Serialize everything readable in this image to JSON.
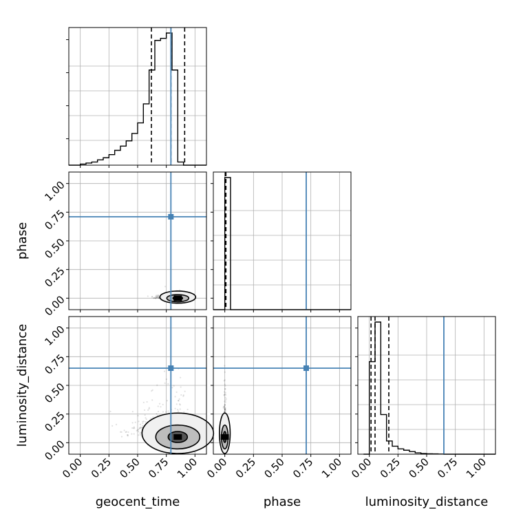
{
  "chart_data": {
    "type": "corner",
    "parameters": [
      "geocent_time",
      "phase",
      "luminosity_distance"
    ],
    "axis_range": [
      -0.1,
      1.1
    ],
    "ticks": [
      0.0,
      0.25,
      0.5,
      0.75,
      1.0
    ],
    "tick_labels": [
      "0.00",
      "0.25",
      "0.50",
      "0.75",
      "1.00"
    ],
    "grid": true,
    "colors": {
      "truth": "#4682b4",
      "hist": "#000000",
      "quantile": "#000000",
      "grid": "#b0b0b0"
    },
    "truths": {
      "geocent_time": 0.79,
      "phase": 0.71,
      "luminosity_distance": 0.65
    },
    "histograms": {
      "geocent_time": {
        "edges_start": -0.1,
        "bin_width": 0.05,
        "counts": [
          0,
          0,
          1,
          2,
          3,
          5,
          7,
          10,
          14,
          18,
          23,
          30,
          40,
          58,
          90,
          118,
          120,
          125,
          90,
          3,
          0,
          0,
          0,
          0
        ],
        "quantiles": [
          0.62,
          0.79,
          0.91
        ]
      },
      "phase": {
        "edges_start": -0.1,
        "bin_width": 0.05,
        "counts": [
          0,
          0,
          100,
          0,
          0,
          0,
          0,
          0,
          0,
          0,
          0,
          0,
          0,
          0,
          0,
          0,
          0,
          0,
          0,
          0,
          0,
          0,
          0,
          0
        ],
        "quantiles": [
          0.005,
          0.005,
          0.01
        ]
      },
      "luminosity_distance": {
        "edges_start": -0.05,
        "bin_width": 0.05,
        "counts": [
          0,
          70,
          100,
          30,
          10,
          6,
          4,
          3,
          2,
          1,
          0.5,
          0.3,
          0.2,
          0.1,
          0,
          0,
          0,
          0,
          0,
          0,
          0,
          0,
          0
        ],
        "quantiles": [
          0.015,
          0.05,
          0.17
        ]
      }
    },
    "scatter_2d": [
      {
        "x": "geocent_time",
        "y": "phase",
        "peak": [
          0.85,
          0.0
        ],
        "spread": [
          0.06,
          0.01
        ]
      },
      {
        "x": "geocent_time",
        "y": "luminosity_distance",
        "peak": [
          0.85,
          0.05
        ],
        "spread": [
          0.12,
          0.08
        ]
      },
      {
        "x": "phase",
        "y": "luminosity_distance",
        "peak": [
          0.0,
          0.05
        ],
        "spread": [
          0.005,
          0.08
        ]
      }
    ]
  }
}
